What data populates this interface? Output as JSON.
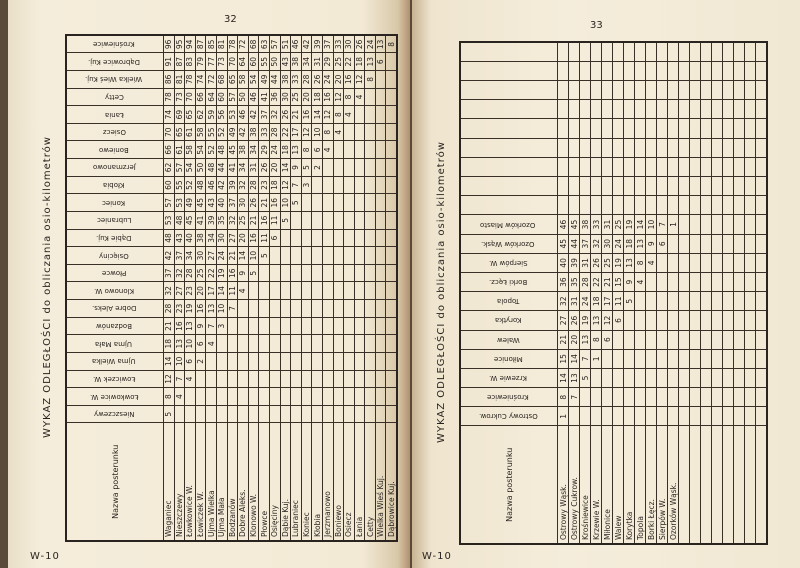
{
  "left_page": {
    "page_number": "32",
    "footer_code": "W-10",
    "title": "WYKAZ ODLEGŁOŚCI do obliczania osio-kilometrów",
    "name_header": "Nazwa posterunku",
    "columns": [
      "Nieszczewy",
      "Łowkowice W.",
      "Łowiczek W.",
      "Ujma Wielka",
      "Ujma Mała",
      "Bodzanów",
      "Dobre Aleks.",
      "Klonowo W.",
      "Płowce",
      "Osięciny",
      "Dąbie Kuj.",
      "Lubraniec",
      "Koniec",
      "Kłobia",
      "Jerzmanowo",
      "Boniewo",
      "Osiecz",
      "Łania",
      "Cetty",
      "Wielka Wieś Kuj.",
      "Dąbrowice Kuj.",
      "Krośniewice"
    ],
    "rows": [
      {
        "name": "Waganiec",
        "values": [
          5,
          8,
          12,
          14,
          18,
          21,
          28,
          32,
          37,
          42,
          48,
          53,
          57,
          60,
          62,
          66,
          70,
          74,
          78,
          86,
          91,
          96
        ]
      },
      {
        "name": "Nieszczewy",
        "values": [
          null,
          4,
          7,
          10,
          13,
          16,
          23,
          27,
          32,
          37,
          43,
          48,
          53,
          55,
          57,
          61,
          65,
          69,
          73,
          81,
          87,
          95
        ]
      },
      {
        "name": "Łowkowice W.",
        "values": [
          null,
          null,
          4,
          6,
          10,
          13,
          19,
          23,
          28,
          34,
          40,
          45,
          49,
          52,
          54,
          58,
          61,
          65,
          70,
          78,
          83,
          94
        ]
      },
      {
        "name": "Łowiczek W.",
        "values": [
          null,
          null,
          null,
          2,
          6,
          9,
          16,
          20,
          25,
          30,
          38,
          41,
          45,
          48,
          50,
          54,
          58,
          62,
          66,
          74,
          79,
          87
        ]
      },
      {
        "name": "Ujma Wielka",
        "values": [
          null,
          null,
          null,
          null,
          4,
          7,
          13,
          17,
          22,
          27,
          34,
          39,
          43,
          46,
          48,
          52,
          55,
          59,
          64,
          72,
          77,
          85
        ]
      },
      {
        "name": "Ujma Mała",
        "values": [
          null,
          null,
          null,
          null,
          null,
          3,
          10,
          14,
          19,
          24,
          30,
          35,
          40,
          42,
          44,
          48,
          52,
          56,
          60,
          68,
          73,
          81
        ]
      },
      {
        "name": "Bodzanów",
        "values": [
          null,
          null,
          null,
          null,
          null,
          null,
          7,
          11,
          16,
          21,
          27,
          32,
          37,
          39,
          41,
          45,
          49,
          53,
          57,
          65,
          70,
          78
        ]
      },
      {
        "name": "Dobre Aleks.",
        "values": [
          null,
          null,
          null,
          null,
          null,
          null,
          null,
          4,
          9,
          14,
          20,
          25,
          30,
          32,
          34,
          38,
          42,
          46,
          50,
          58,
          64,
          72
        ]
      },
      {
        "name": "Klonowo W.",
        "values": [
          null,
          null,
          null,
          null,
          null,
          null,
          null,
          null,
          5,
          10,
          16,
          21,
          26,
          28,
          31,
          34,
          38,
          42,
          46,
          54,
          60,
          68
        ]
      },
      {
        "name": "Płowce",
        "values": [
          null,
          null,
          null,
          null,
          null,
          null,
          null,
          null,
          null,
          5,
          11,
          16,
          21,
          23,
          26,
          29,
          33,
          37,
          41,
          49,
          55,
          63
        ]
      },
      {
        "name": "Osięciny",
        "values": [
          null,
          null,
          null,
          null,
          null,
          null,
          null,
          null,
          null,
          null,
          6,
          11,
          16,
          18,
          20,
          24,
          28,
          32,
          36,
          44,
          50,
          57
        ]
      },
      {
        "name": "Dąbie Kuj.",
        "values": [
          null,
          null,
          null,
          null,
          null,
          null,
          null,
          null,
          null,
          null,
          null,
          5,
          10,
          12,
          14,
          18,
          22,
          26,
          30,
          38,
          43,
          51
        ]
      },
      {
        "name": "Lubraniec",
        "values": [
          null,
          null,
          null,
          null,
          null,
          null,
          null,
          null,
          null,
          null,
          null,
          null,
          5,
          7,
          9,
          13,
          17,
          21,
          25,
          33,
          38,
          46
        ]
      },
      {
        "name": "Koniec",
        "values": [
          null,
          null,
          null,
          null,
          null,
          null,
          null,
          null,
          null,
          null,
          null,
          null,
          null,
          3,
          5,
          8,
          12,
          16,
          20,
          28,
          34,
          42
        ]
      },
      {
        "name": "Kłobia",
        "values": [
          null,
          null,
          null,
          null,
          null,
          null,
          null,
          null,
          null,
          null,
          null,
          null,
          null,
          null,
          2,
          6,
          10,
          14,
          18,
          26,
          31,
          39
        ]
      },
      {
        "name": "Jerzmanowo",
        "values": [
          null,
          null,
          null,
          null,
          null,
          null,
          null,
          null,
          null,
          null,
          null,
          null,
          null,
          null,
          null,
          4,
          8,
          12,
          16,
          24,
          29,
          37
        ]
      },
      {
        "name": "Boniewo",
        "values": [
          null,
          null,
          null,
          null,
          null,
          null,
          null,
          null,
          null,
          null,
          null,
          null,
          null,
          null,
          null,
          null,
          4,
          8,
          12,
          20,
          25,
          33
        ]
      },
      {
        "name": "Osiecz",
        "values": [
          null,
          null,
          null,
          null,
          null,
          null,
          null,
          null,
          null,
          null,
          null,
          null,
          null,
          null,
          null,
          null,
          null,
          4,
          8,
          16,
          22,
          30
        ]
      },
      {
        "name": "Łania",
        "values": [
          null,
          null,
          null,
          null,
          null,
          null,
          null,
          null,
          null,
          null,
          null,
          null,
          null,
          null,
          null,
          null,
          null,
          null,
          4,
          12,
          18,
          26
        ]
      },
      {
        "name": "Cetty",
        "values": [
          null,
          null,
          null,
          null,
          null,
          null,
          null,
          null,
          null,
          null,
          null,
          null,
          null,
          null,
          null,
          null,
          null,
          null,
          null,
          8,
          13,
          24
        ]
      },
      {
        "name": "Wielka Wieś Kuj.",
        "values": [
          null,
          null,
          null,
          null,
          null,
          null,
          null,
          null,
          null,
          null,
          null,
          null,
          null,
          null,
          null,
          null,
          null,
          null,
          null,
          null,
          6,
          13
        ]
      },
      {
        "name": "Dąbrowice Kuj.",
        "values": [
          null,
          null,
          null,
          null,
          null,
          null,
          null,
          null,
          null,
          null,
          null,
          null,
          null,
          null,
          null,
          null,
          null,
          null,
          null,
          null,
          null,
          8
        ]
      }
    ]
  },
  "right_page": {
    "page_number": "33",
    "footer_code": "W-10",
    "title": "WYKAZ ODLEGŁOŚCI do obliczania osio-kilometrów",
    "name_header": "Nazwa posterunku",
    "columns": [
      "Ostrowy Cukrow.",
      "Krośniewice",
      "Krzewie W.",
      "Miłonice",
      "Walew",
      "Korytka",
      "Topola",
      "Borki Łęcz.",
      "Sierpów W.",
      "Ozorków Wąsk.",
      "Ozorków Miasto"
    ],
    "rows": [
      {
        "name": "Ostrowy Wąsk.",
        "values": [
          1,
          8,
          14,
          15,
          21,
          27,
          32,
          36,
          40,
          45,
          46
        ]
      },
      {
        "name": "Ostrowy Cukrow.",
        "values": [
          null,
          7,
          13,
          14,
          20,
          26,
          31,
          35,
          39,
          44,
          45
        ]
      },
      {
        "name": "Krośniewice",
        "values": [
          null,
          null,
          5,
          7,
          13,
          19,
          24,
          28,
          31,
          37,
          38
        ]
      },
      {
        "name": "Krzewie W.",
        "values": [
          null,
          null,
          null,
          1,
          8,
          13,
          18,
          22,
          26,
          32,
          33
        ]
      },
      {
        "name": "Miłonice",
        "values": [
          null,
          null,
          null,
          null,
          6,
          12,
          17,
          21,
          25,
          30,
          31
        ]
      },
      {
        "name": "Walew",
        "values": [
          null,
          null,
          null,
          null,
          null,
          6,
          11,
          15,
          19,
          24,
          25
        ]
      },
      {
        "name": "Korytka",
        "values": [
          null,
          null,
          null,
          null,
          null,
          null,
          5,
          9,
          13,
          18,
          19
        ]
      },
      {
        "name": "Topola",
        "values": [
          null,
          null,
          null,
          null,
          null,
          null,
          null,
          4,
          8,
          13,
          14
        ]
      },
      {
        "name": "Borki Łęcz.",
        "values": [
          null,
          null,
          null,
          null,
          null,
          null,
          null,
          null,
          4,
          9,
          10
        ]
      },
      {
        "name": "Sierpów W.",
        "values": [
          null,
          null,
          null,
          null,
          null,
          null,
          null,
          null,
          null,
          6,
          7
        ]
      },
      {
        "name": "Ozorków Wąsk.",
        "values": [
          null,
          null,
          null,
          null,
          null,
          null,
          null,
          null,
          null,
          null,
          1
        ]
      }
    ]
  },
  "colors": {
    "paper": "#f4ecd9",
    "ink": "#2a2420"
  }
}
